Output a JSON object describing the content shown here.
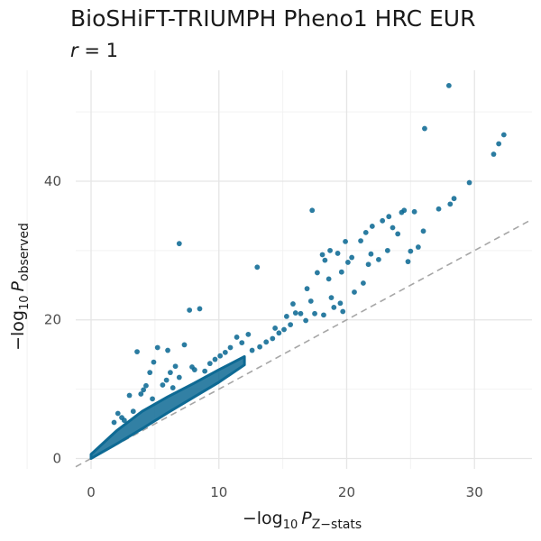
{
  "chart_data": {
    "type": "scatter",
    "title": "BioSHiFT-TRIUMPH Pheno1 HRC EUR",
    "subtitle": {
      "var": "r",
      "op": " = ",
      "value": "1"
    },
    "xlabel": {
      "prefix": "−log",
      "base": "10",
      "var": "P",
      "sub": "Z−stats"
    },
    "ylabel": {
      "prefix": "−log",
      "base": "10",
      "var": "P",
      "sub": "observed"
    },
    "xlim": [
      -1.2,
      34.5
    ],
    "ylim": [
      -1.5,
      56
    ],
    "xticks": [
      0,
      10,
      20,
      30
    ],
    "yticks": [
      0,
      20,
      40
    ],
    "grid": true,
    "legend": "none",
    "reference_line": {
      "slope": 1,
      "intercept": 0,
      "style": "dashed"
    },
    "colors": {
      "points": "#0e6a94",
      "reference_line": "#a6a6a6",
      "grid_major": "#e5e5e5",
      "grid_minor": "#f2f2f2"
    },
    "points": [
      [
        28.0,
        53.8
      ],
      [
        26.1,
        47.6
      ],
      [
        32.3,
        46.7
      ],
      [
        31.9,
        45.4
      ],
      [
        31.5,
        43.9
      ],
      [
        29.6,
        39.8
      ],
      [
        28.4,
        37.5
      ],
      [
        28.1,
        36.7
      ],
      [
        27.2,
        36.0
      ],
      [
        25.3,
        35.6
      ],
      [
        24.5,
        35.8
      ],
      [
        24.3,
        35.5
      ],
      [
        23.3,
        34.9
      ],
      [
        22.8,
        34.3
      ],
      [
        22.0,
        33.5
      ],
      [
        23.6,
        33.3
      ],
      [
        21.5,
        32.6
      ],
      [
        24.0,
        32.4
      ],
      [
        26.0,
        32.8
      ],
      [
        21.1,
        31.4
      ],
      [
        19.9,
        31.3
      ],
      [
        25.6,
        30.5
      ],
      [
        25.0,
        29.9
      ],
      [
        18.7,
        30.0
      ],
      [
        18.1,
        29.4
      ],
      [
        19.3,
        29.6
      ],
      [
        20.4,
        29.0
      ],
      [
        21.9,
        29.5
      ],
      [
        23.2,
        30.0
      ],
      [
        18.3,
        28.6
      ],
      [
        20.1,
        28.3
      ],
      [
        21.7,
        28.0
      ],
      [
        22.5,
        28.7
      ],
      [
        24.8,
        28.4
      ],
      [
        17.7,
        26.8
      ],
      [
        18.6,
        25.9
      ],
      [
        19.6,
        26.9
      ],
      [
        21.3,
        25.3
      ],
      [
        16.9,
        24.5
      ],
      [
        17.2,
        22.7
      ],
      [
        18.8,
        23.2
      ],
      [
        19.5,
        22.4
      ],
      [
        20.6,
        24.0
      ],
      [
        19.0,
        21.8
      ],
      [
        16.0,
        21.0
      ],
      [
        15.8,
        22.3
      ],
      [
        15.3,
        20.5
      ],
      [
        16.4,
        20.9
      ],
      [
        17.5,
        20.9
      ],
      [
        18.2,
        20.7
      ],
      [
        19.7,
        21.2
      ],
      [
        16.8,
        19.9
      ],
      [
        15.1,
        18.6
      ],
      [
        14.7,
        18.1
      ],
      [
        14.2,
        17.3
      ],
      [
        13.7,
        16.8
      ],
      [
        13.2,
        16.1
      ],
      [
        12.6,
        15.6
      ],
      [
        15.6,
        19.3
      ],
      [
        14.4,
        18.8
      ],
      [
        17.3,
        35.8
      ],
      [
        6.9,
        31.0
      ],
      [
        13.0,
        27.6
      ],
      [
        7.7,
        21.4
      ],
      [
        8.5,
        21.6
      ],
      [
        12.3,
        17.9
      ],
      [
        11.8,
        16.7
      ],
      [
        11.4,
        17.5
      ],
      [
        10.9,
        16.0
      ],
      [
        10.5,
        15.3
      ],
      [
        10.1,
        14.8
      ],
      [
        9.7,
        14.3
      ],
      [
        9.3,
        13.7
      ],
      [
        6.0,
        15.6
      ],
      [
        5.2,
        16.0
      ],
      [
        7.3,
        16.4
      ],
      [
        3.6,
        15.4
      ],
      [
        4.9,
        13.9
      ],
      [
        6.6,
        13.3
      ],
      [
        8.1,
        12.8
      ],
      [
        7.9,
        13.2
      ],
      [
        8.9,
        12.6
      ],
      [
        6.2,
        12.4
      ],
      [
        4.6,
        12.4
      ],
      [
        6.9,
        11.7
      ],
      [
        5.9,
        11.3
      ],
      [
        5.6,
        10.6
      ],
      [
        4.3,
        10.5
      ],
      [
        4.1,
        9.9
      ],
      [
        6.4,
        10.2
      ],
      [
        3.0,
        9.1
      ],
      [
        3.9,
        9.3
      ],
      [
        2.1,
        6.5
      ],
      [
        2.4,
        5.9
      ],
      [
        4.8,
        8.6
      ],
      [
        2.6,
        5.5
      ],
      [
        3.3,
        6.8
      ],
      [
        1.8,
        5.2
      ]
    ]
  }
}
